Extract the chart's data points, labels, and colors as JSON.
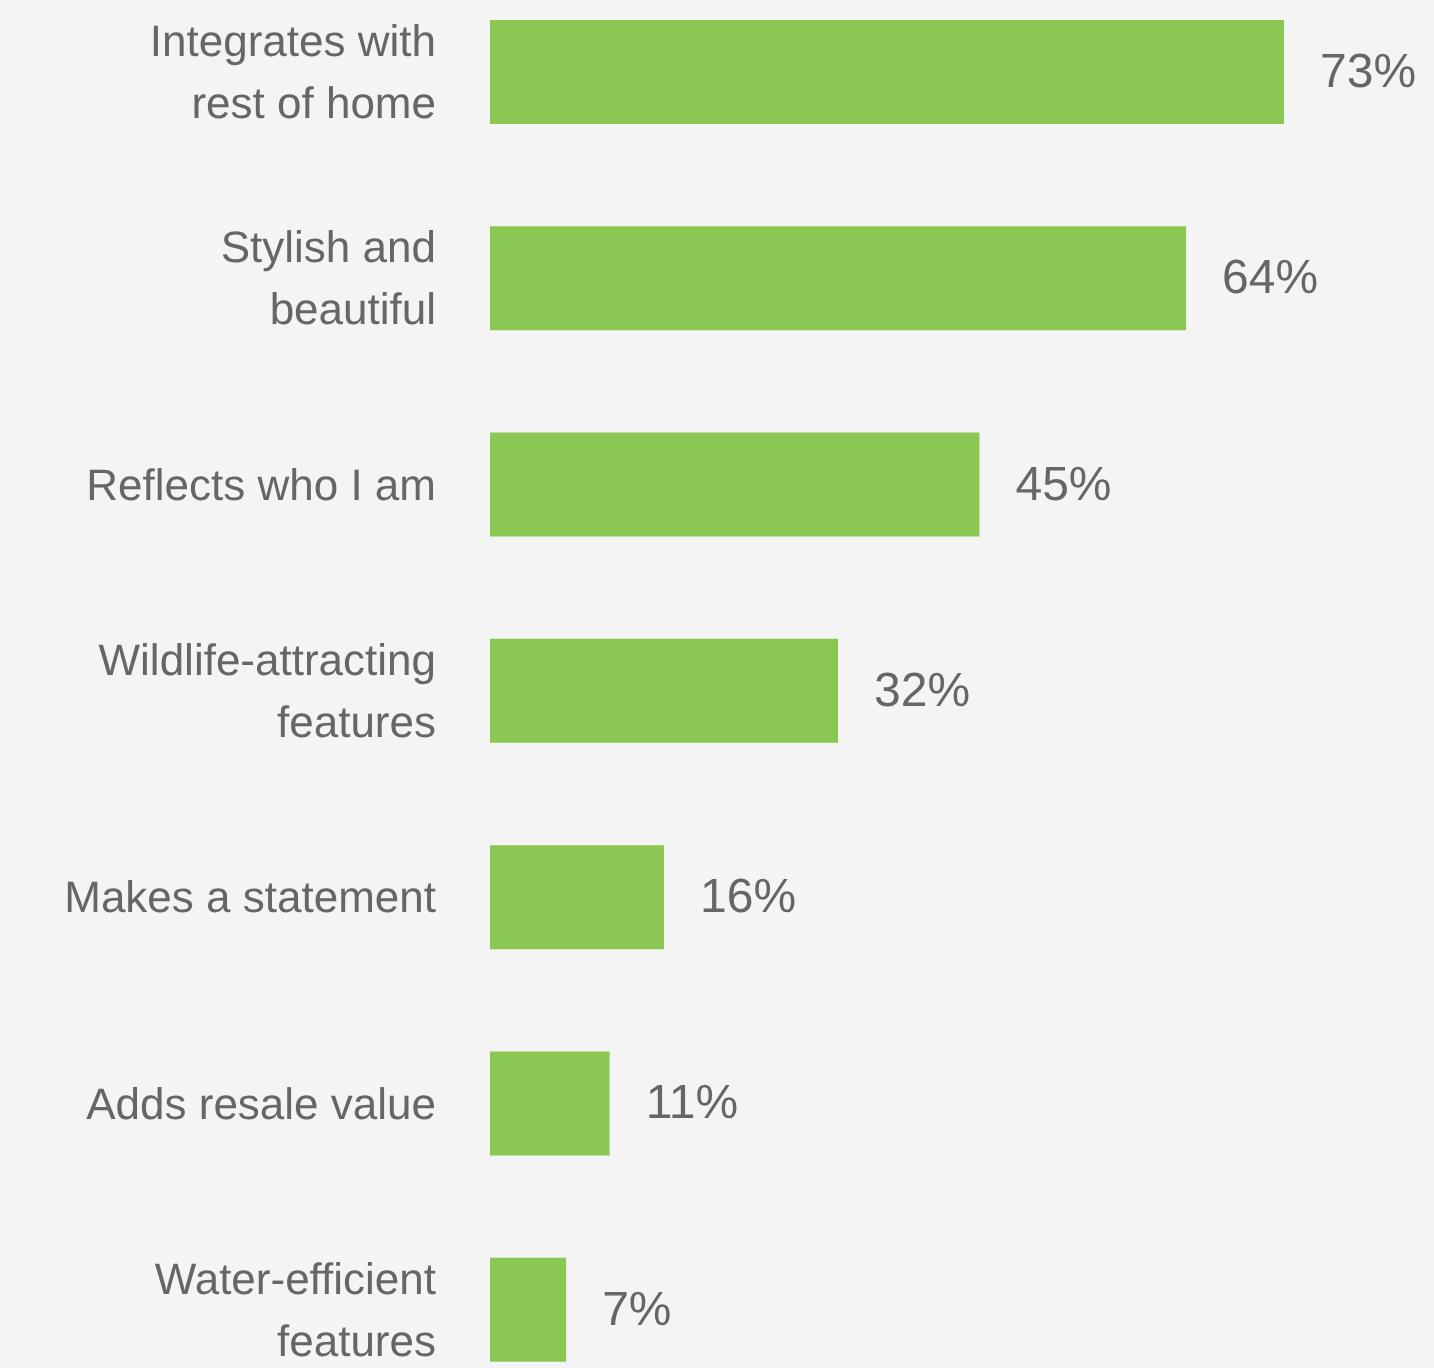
{
  "chart_data": {
    "type": "bar",
    "orientation": "horizontal",
    "categories": [
      "Integrates with rest of home",
      "Stylish and beautiful",
      "Reflects who I am",
      "Wildlife-attracting features",
      "Makes a statement",
      "Adds resale value",
      "Water-efficient features"
    ],
    "values": [
      73,
      64,
      45,
      32,
      16,
      11,
      7
    ],
    "value_labels": [
      "73%",
      "64%",
      "45%",
      "32%",
      "16%",
      "11%",
      "7%"
    ],
    "color": "#8bc853"
  }
}
